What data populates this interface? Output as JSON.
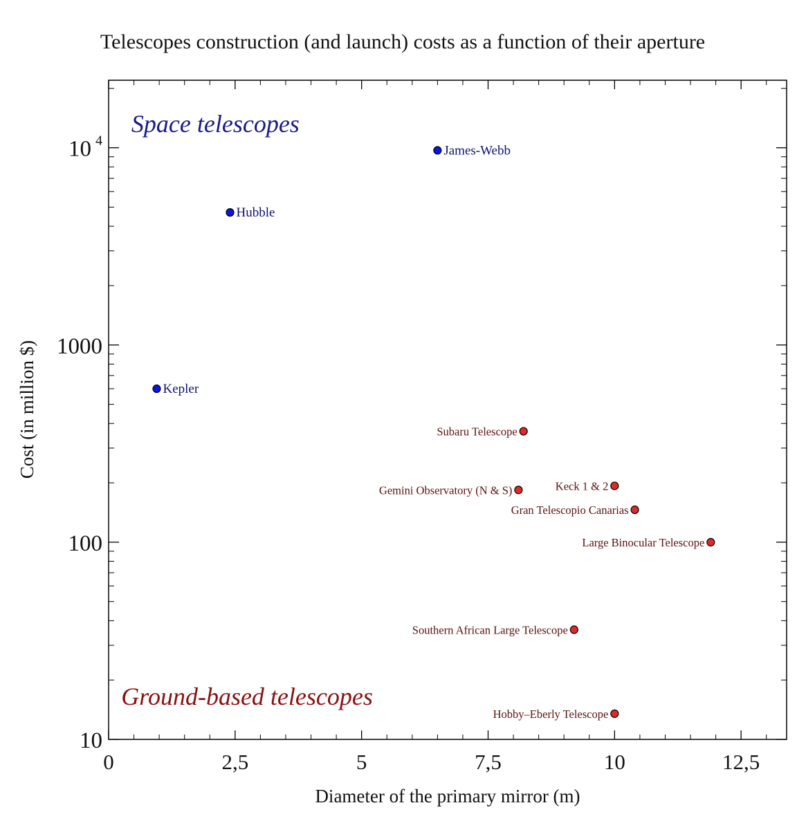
{
  "chart_data": {
    "type": "scatter",
    "title": "Telescopes construction (and launch) costs as a function of their aperture",
    "xlabel": "Diameter of the primary mirror (m)",
    "ylabel": "Cost (in million $)",
    "xlim": [
      0,
      13.4
    ],
    "ylim": [
      10,
      22000
    ],
    "yscale": "log",
    "x_ticks": [
      {
        "value": 0,
        "label": "0"
      },
      {
        "value": 2.5,
        "label": "2,5"
      },
      {
        "value": 5,
        "label": "5"
      },
      {
        "value": 7.5,
        "label": "7,5"
      },
      {
        "value": 10,
        "label": "10"
      },
      {
        "value": 12.5,
        "label": "12,5"
      }
    ],
    "y_ticks": [
      {
        "value": 10,
        "label": "10"
      },
      {
        "value": 100,
        "label": "100"
      },
      {
        "value": 1000,
        "label": "1000"
      },
      {
        "value": 10000,
        "label_base": "10",
        "label_exp": "4"
      }
    ],
    "grid": false,
    "annotations": [
      {
        "text": "Space telescopes",
        "color": "#1a1a8c",
        "anchor_x": 0.45,
        "anchor_y": 12000
      },
      {
        "text": "Ground-based telescopes",
        "color": "#8b1010",
        "anchor_x": 0.25,
        "anchor_y": 15
      }
    ],
    "series": [
      {
        "name": "Space telescopes",
        "color": "#0a14e6",
        "label_color": "#101070",
        "points": [
          {
            "label": "James-Webb",
            "x": 6.5,
            "y": 9700,
            "label_side": "right"
          },
          {
            "label": "Hubble",
            "x": 2.4,
            "y": 4700,
            "label_side": "right"
          },
          {
            "label": "Kepler",
            "x": 0.95,
            "y": 600,
            "label_side": "right"
          }
        ]
      },
      {
        "name": "Ground-based telescopes",
        "color": "#e02a2a",
        "label_color": "#5a1010",
        "points": [
          {
            "label": "Subaru Telescope",
            "x": 8.2,
            "y": 365,
            "label_side": "left"
          },
          {
            "label": "Keck 1 & 2",
            "x": 10,
            "y": 193,
            "label_side": "left"
          },
          {
            "label": "Gemini Observatory (N & S)",
            "x": 8.1,
            "y": 184,
            "label_side": "left"
          },
          {
            "label": "Gran Telescopio Canarias",
            "x": 10.4,
            "y": 146,
            "label_side": "left"
          },
          {
            "label": "Large Binocular Telescope",
            "x": 11.9,
            "y": 100,
            "label_side": "left"
          },
          {
            "label": "Southern African Large Telescope",
            "x": 9.2,
            "y": 36,
            "label_side": "left"
          },
          {
            "label": "Hobby–Eberly Telescope",
            "x": 10,
            "y": 13.5,
            "label_side": "left"
          }
        ]
      }
    ]
  }
}
